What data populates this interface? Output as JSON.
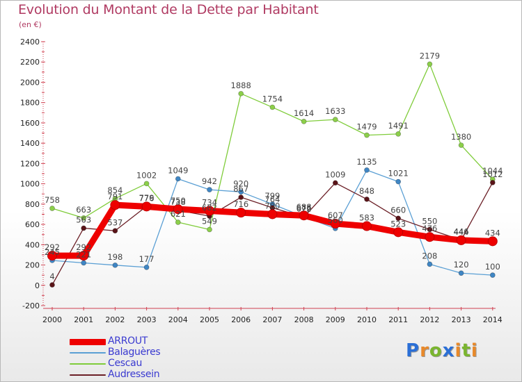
{
  "title": "Evolution du Montant de la Dette par Habitant",
  "subtitle": "(en €)",
  "logo": {
    "text": "Proxiti",
    "letters": [
      {
        "ch": "P",
        "color": "#2b6fd6"
      },
      {
        "ch": "r",
        "color": "#e8892a"
      },
      {
        "ch": "o",
        "color": "#7ab52f"
      },
      {
        "ch": "x",
        "color": "#2b6fd6"
      },
      {
        "ch": "i",
        "color": "#e8892a"
      },
      {
        "ch": "t",
        "color": "#7ab52f"
      },
      {
        "ch": "i",
        "color": "#e8892a"
      }
    ]
  },
  "chart_data": {
    "type": "line",
    "title": "Evolution du Montant de la Dette par Habitant",
    "ylabel": "(en €)",
    "xlabel": "",
    "x": [
      "2000",
      "2001",
      "2002",
      "2003",
      "2004",
      "2005",
      "2006",
      "2007",
      "2008",
      "2009",
      "2010",
      "2011",
      "2012",
      "2013",
      "2014"
    ],
    "ylim": [
      -200,
      2400
    ],
    "yticks": [
      -200,
      0,
      200,
      400,
      600,
      800,
      1000,
      1200,
      1400,
      1600,
      1800,
      2000,
      2200,
      2400
    ],
    "grid": false,
    "legend_position": "bottom-left",
    "series": [
      {
        "name": "Cescau",
        "color": "#7fcc3a",
        "marker": "#8ccf4a",
        "values": [
          758,
          663,
          854,
          1002,
          621,
          549,
          1888,
          1754,
          1614,
          1633,
          1479,
          1491,
          2179,
          1380,
          1044
        ]
      },
      {
        "name": "Balaguères",
        "color": "#5a9fd4",
        "marker": "#3f86c4",
        "values": [
          245,
          221,
          198,
          177,
          1049,
          942,
          920,
          799,
          676,
          560,
          1135,
          1021,
          208,
          120,
          100
        ]
      },
      {
        "name": "Audressein",
        "color": "#6b1f26",
        "marker": "#5a1418",
        "values": [
          4,
          563,
          537,
          779,
          738,
          682,
          867,
          764,
          672,
          1009,
          848,
          660,
          550,
          446,
          1012
        ]
      },
      {
        "name": "ARROUT",
        "color": "#ee0000",
        "marker": "#ee0000",
        "values": [
          292,
          292,
          791,
          776,
          750,
          734,
          716,
          700,
          688,
          607,
          583,
          523,
          476,
          444,
          434
        ]
      }
    ]
  }
}
